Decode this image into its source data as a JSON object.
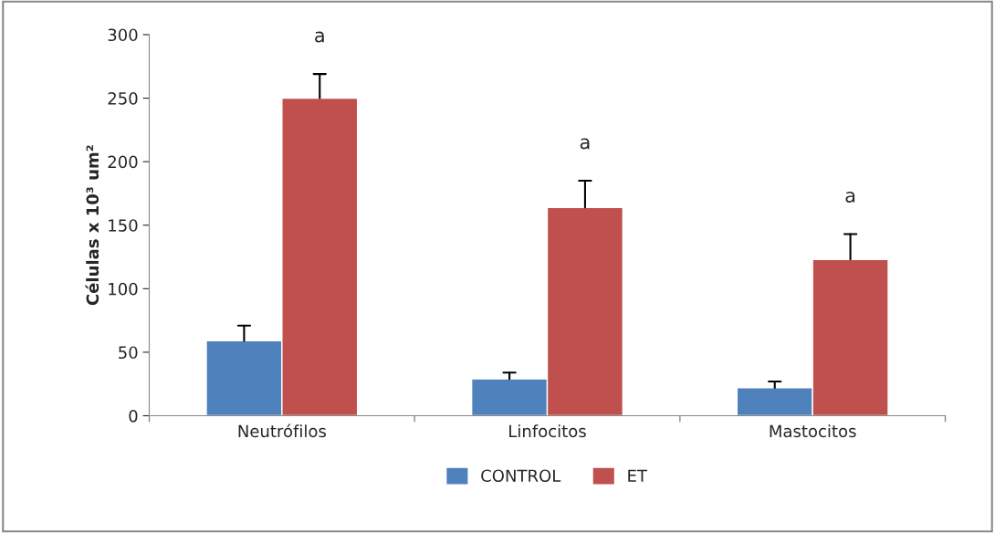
{
  "chart_data": {
    "type": "bar",
    "ylabel": "Células x 10³ um²",
    "categories": [
      "Neutrófilos",
      "Linfocitos",
      "Mastocitos"
    ],
    "series": [
      {
        "name": "CONTROL",
        "color": "#4f81bd",
        "values": [
          59,
          29,
          22
        ],
        "errors": [
          [
            59,
            71
          ],
          [
            29,
            34
          ],
          [
            22,
            27
          ]
        ]
      },
      {
        "name": "ET",
        "color": "#c0504d",
        "values": [
          250,
          164,
          123
        ],
        "errors": [
          [
            250,
            269
          ],
          [
            164,
            185
          ],
          [
            123,
            143
          ]
        ]
      }
    ],
    "ylim": [
      0,
      300
    ],
    "yticks": [
      0,
      50,
      100,
      150,
      200,
      250,
      300
    ],
    "grid": false,
    "legend": "bottom",
    "annotations": [
      "a",
      "a",
      "a"
    ]
  }
}
